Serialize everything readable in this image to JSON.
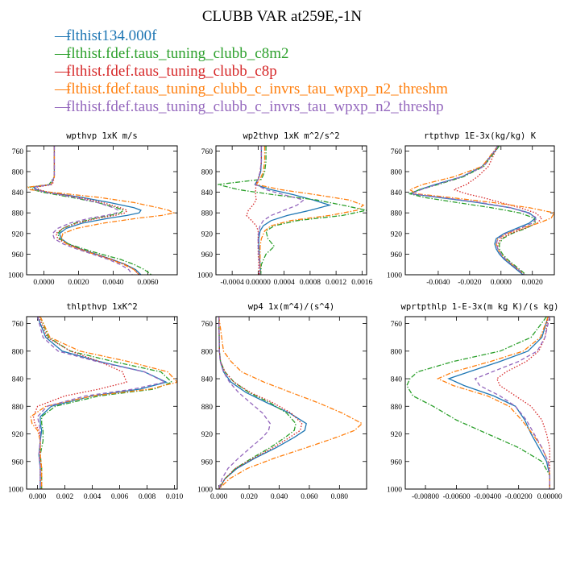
{
  "title": "CLUBB VAR at259E,-1N",
  "legend": [
    {
      "label": "flthist134.000f",
      "color": "#1f77b4",
      "dash": "solid"
    },
    {
      "label": "flthist.fdef.taus_tuning_clubb_c8m2",
      "color": "#2ca02c",
      "dash": "dashdot"
    },
    {
      "label": "flthist.fdef.taus_tuning_clubb_c8p",
      "color": "#d62728",
      "dash": "dotted"
    },
    {
      "label": "flthist.fdef.taus_tuning_clubb_c_invrs_tau_wpxp_n2_threshm",
      "color": "#ff7f0e",
      "dash": "dashdot"
    },
    {
      "label": "flthist.fdef.taus_tuning_clubb_c_invrs_tau_wpxp_n2_threshp",
      "color": "#9467bd",
      "dash": "dashed"
    }
  ],
  "chart_data": [
    {
      "type": "line",
      "title": "wpthvp  1xK m/s",
      "xlim": [
        -0.001,
        0.0077
      ],
      "xticks": [
        0.0,
        0.002,
        0.004,
        0.006
      ],
      "xtick_labels": [
        "0.0000",
        "0.0020",
        "0.0040",
        "0.0060"
      ],
      "ylim": [
        1000,
        750
      ],
      "yticks": [
        760,
        800,
        840,
        880,
        920,
        960,
        1000
      ],
      "y": [
        750,
        780,
        810,
        825,
        830,
        835,
        840,
        850,
        860,
        870,
        875,
        880,
        885,
        890,
        900,
        910,
        920,
        930,
        940,
        950,
        960,
        970,
        980,
        990,
        1000
      ],
      "series": [
        {
          "values": [
            0.0006,
            0.0006,
            0.0006,
            0.0004,
            -0.0006,
            -0.0004,
            0.0002,
            0.0022,
            0.0038,
            0.0052,
            0.0056,
            0.0055,
            0.0048,
            0.0038,
            0.0022,
            0.0013,
            0.0009,
            0.001,
            0.0014,
            0.0021,
            0.003,
            0.0039,
            0.0047,
            0.0053,
            0.0056
          ]
        },
        {
          "values": [
            0.0006,
            0.0006,
            0.0006,
            0.0003,
            -0.0008,
            -0.0006,
            -0.0001,
            0.0016,
            0.0031,
            0.0042,
            0.0046,
            0.0044,
            0.0038,
            0.003,
            0.0018,
            0.0011,
            0.0008,
            0.0009,
            0.0014,
            0.0023,
            0.0033,
            0.0044,
            0.0052,
            0.0058,
            0.0062
          ]
        },
        {
          "values": [
            0.0006,
            0.0006,
            0.0006,
            0.0005,
            -0.0004,
            -0.0003,
            0.0003,
            0.002,
            0.0034,
            0.0044,
            0.0048,
            0.0047,
            0.0041,
            0.0032,
            0.0019,
            0.0011,
            0.0007,
            0.0008,
            0.0013,
            0.0021,
            0.003,
            0.0039,
            0.0047,
            0.0052,
            0.0055
          ]
        },
        {
          "values": [
            0.0006,
            0.0006,
            0.0006,
            0.0004,
            -0.0009,
            -0.0008,
            0.0004,
            0.0032,
            0.0052,
            0.0066,
            0.0072,
            0.0075,
            0.0068,
            0.0055,
            0.0034,
            0.0019,
            0.0011,
            0.001,
            0.0013,
            0.002,
            0.0029,
            0.0038,
            0.0046,
            0.0052,
            0.0055
          ]
        },
        {
          "values": [
            0.0006,
            0.0006,
            0.0006,
            0.0004,
            -0.0006,
            -0.0005,
            0.0001,
            0.0018,
            0.0031,
            0.004,
            0.0043,
            0.0042,
            0.0036,
            0.0027,
            0.0015,
            0.0008,
            0.0005,
            0.0006,
            0.0011,
            0.0019,
            0.0028,
            0.0037,
            0.0044,
            0.0049,
            0.0051
          ]
        }
      ]
    },
    {
      "type": "line",
      "title": "wp2thvp  1xK m^2/s^2",
      "xlim": [
        -0.00065,
        0.00167
      ],
      "xticks": [
        -0.0004,
        0.0,
        0.0004,
        0.0008,
        0.0012,
        0.0016
      ],
      "xtick_labels": [
        "-0.0004",
        "0.00000",
        "0.0004",
        "0.0008",
        "0.0012",
        "0.0016"
      ],
      "ylim": [
        1000,
        750
      ],
      "yticks": [
        760,
        800,
        840,
        880,
        920,
        960,
        1000
      ],
      "y": [
        750,
        780,
        800,
        815,
        825,
        835,
        845,
        855,
        865,
        875,
        885,
        895,
        905,
        915,
        930,
        945,
        960,
        980,
        1000
      ],
      "series": [
        {
          "values": [
            5e-05,
            5e-05,
            4e-05,
            0.0,
            -5e-05,
            0.0002,
            0.00055,
            0.00085,
            0.0011,
            0.0008,
            0.00045,
            0.0002,
            8e-05,
            3e-05,
            1e-05,
            1e-05,
            2e-05,
            3e-05,
            4e-05
          ]
        },
        {
          "values": [
            0.00012,
            0.00012,
            0.0001,
            5e-05,
            -0.00062,
            -0.0003,
            0.00025,
            0.0009,
            0.0013,
            0.00167,
            0.0013,
            0.0006,
            0.00025,
            0.00012,
            0.00015,
            0.00025,
            0.00012,
            5e-05,
            4e-05
          ]
        },
        {
          "values": [
            5e-05,
            5e-05,
            3e-05,
            0.0,
            -3e-05,
            -4e-05,
            -4e-05,
            -3e-05,
            -8e-05,
            -0.00015,
            -0.00018,
            -0.0001,
            -3e-05,
            0.0,
            0.0,
            0.0,
            0.0,
            1e-05,
            1e-05
          ]
        },
        {
          "values": [
            0.0001,
            0.0001,
            8e-05,
            3e-05,
            -3e-05,
            0.00035,
            0.0009,
            0.0014,
            0.00162,
            0.00152,
            0.0011,
            0.0005,
            0.0002,
            0.0001,
            5e-05,
            3e-05,
            3e-05,
            3e-05,
            3e-05
          ]
        },
        {
          "values": [
            5e-05,
            5e-05,
            3e-05,
            0.0,
            -4e-05,
            0.00012,
            0.0004,
            0.0007,
            0.0006,
            0.0004,
            0.0002,
            8e-05,
            3e-05,
            1e-05,
            0.0,
            0.0,
            1e-05,
            2e-05,
            3e-05
          ]
        }
      ]
    },
    {
      "type": "line",
      "title": "rtpthvp  1E-3x(kg/kg) K",
      "xlim": [
        -0.0061,
        0.0034
      ],
      "xticks": [
        -0.004,
        -0.002,
        0.0,
        0.002
      ],
      "xtick_labels": [
        "-0.0040",
        "-0.0020",
        "0.0000",
        "0.0020"
      ],
      "ylim": [
        1000,
        750
      ],
      "yticks": [
        760,
        800,
        840,
        880,
        920,
        960,
        1000
      ],
      "y": [
        750,
        790,
        810,
        825,
        835,
        843,
        850,
        860,
        870,
        880,
        890,
        900,
        910,
        920,
        930,
        940,
        950,
        960,
        970,
        980,
        990,
        1000
      ],
      "series": [
        {
          "values": [
            -0.0001,
            -0.0012,
            -0.0025,
            -0.0042,
            -0.0052,
            -0.0058,
            -0.004,
            -0.0015,
            0.0006,
            0.0018,
            0.0022,
            0.0018,
            0.001,
            0.0002,
            -0.0003,
            -0.0004,
            -0.0003,
            -0.0001,
            0.0002,
            0.0006,
            0.001,
            0.0014
          ]
        },
        {
          "values": [
            -0.0001,
            -0.0011,
            -0.0024,
            -0.004,
            -0.0052,
            -0.0058,
            -0.0049,
            -0.0028,
            -0.0006,
            0.0012,
            0.0021,
            0.0022,
            0.0016,
            0.0007,
            0.0001,
            -0.0001,
            -0.0001,
            0.0001,
            0.0004,
            0.0008,
            0.0012,
            0.0016
          ]
        },
        {
          "values": [
            -0.0002,
            -0.0008,
            -0.0015,
            -0.0022,
            -0.003,
            -0.0022,
            -0.0012,
            0.0,
            0.0012,
            0.0022,
            0.0026,
            0.0023,
            0.0015,
            0.0006,
            0.0,
            -0.0002,
            -0.0002,
            0.0,
            0.0003,
            0.0007,
            0.0011,
            0.0015
          ]
        },
        {
          "values": [
            -0.0002,
            -0.0012,
            -0.003,
            -0.005,
            -0.0058,
            -0.0054,
            -0.0033,
            -0.0005,
            0.0018,
            0.0034,
            0.0032,
            0.0024,
            0.0013,
            0.0004,
            -0.0002,
            -0.0003,
            -0.0002,
            0.0,
            0.0003,
            0.0007,
            0.0011,
            0.0015
          ]
        },
        {
          "values": [
            -0.0002,
            -0.0011,
            -0.0025,
            -0.0041,
            -0.0051,
            -0.0057,
            -0.0038,
            -0.0013,
            0.0006,
            0.0017,
            0.0023,
            0.002,
            0.0012,
            0.0003,
            -0.0002,
            -0.0003,
            -0.0002,
            0.0,
            0.0003,
            0.0007,
            0.0011,
            0.0015
          ]
        }
      ]
    },
    {
      "type": "line",
      "title": "thlpthvp  1xK^2",
      "xlim": [
        -0.0008,
        0.0102
      ],
      "xticks": [
        0.0,
        0.002,
        0.004,
        0.006,
        0.008,
        0.01
      ],
      "xtick_labels": [
        "0.000",
        "0.002",
        "0.004",
        "0.006",
        "0.008",
        "0.010"
      ],
      "ylim": [
        1000,
        750
      ],
      "yticks": [
        760,
        800,
        840,
        880,
        920,
        960,
        1000
      ],
      "y": [
        750,
        780,
        800,
        815,
        830,
        845,
        855,
        865,
        880,
        895,
        905,
        915,
        930,
        950,
        970,
        990,
        1000
      ],
      "series": [
        {
          "values": [
            0.0,
            0.0006,
            0.0018,
            0.0045,
            0.0078,
            0.0094,
            0.0075,
            0.004,
            0.001,
            0.0002,
            0.0002,
            0.0003,
            0.0002,
            0.0001,
            0.0002,
            0.0002,
            0.0002
          ]
        },
        {
          "values": [
            0.0002,
            0.0008,
            0.0024,
            0.0055,
            0.009,
            0.0098,
            0.0085,
            0.0045,
            0.0013,
            0.0003,
            0.0003,
            0.0004,
            0.0004,
            0.0002,
            0.0003,
            0.0003,
            0.0003
          ]
        },
        {
          "values": [
            0.0001,
            0.0007,
            0.0024,
            0.0045,
            0.0062,
            0.0065,
            0.0045,
            0.002,
            0.0,
            -0.0003,
            -0.0002,
            0.0001,
            0.0002,
            0.0002,
            0.0002,
            0.0002,
            0.0002
          ]
        },
        {
          "values": [
            0.0002,
            0.0009,
            0.0031,
            0.0066,
            0.0095,
            0.0102,
            0.0082,
            0.004,
            0.0006,
            -0.0005,
            -0.0004,
            0.0,
            0.0002,
            0.0002,
            0.0003,
            0.0003,
            0.0003
          ]
        },
        {
          "values": [
            0.0,
            0.0004,
            0.0015,
            0.0043,
            0.0078,
            0.0093,
            0.007,
            0.0035,
            0.0007,
            0.0,
            0.0001,
            0.0002,
            0.0002,
            0.0001,
            0.0002,
            0.0002,
            0.0002
          ]
        }
      ]
    },
    {
      "type": "line",
      "title": "wp4  1x(m^4)/(s^4)",
      "xlim": [
        -0.002,
        0.098
      ],
      "xticks": [
        0.0,
        0.02,
        0.04,
        0.06,
        0.08
      ],
      "xtick_labels": [
        "0.000",
        "0.020",
        "0.040",
        "0.060",
        "0.080"
      ],
      "ylim": [
        1000,
        750
      ],
      "yticks": [
        760,
        800,
        840,
        880,
        920,
        960,
        1000
      ],
      "y": [
        750,
        800,
        815,
        830,
        845,
        860,
        875,
        890,
        905,
        915,
        925,
        940,
        955,
        970,
        985,
        1000
      ],
      "series": [
        {
          "values": [
            0.0,
            0.0003,
            0.001,
            0.003,
            0.008,
            0.018,
            0.032,
            0.047,
            0.058,
            0.057,
            0.05,
            0.038,
            0.024,
            0.012,
            0.004,
            0.0
          ]
        },
        {
          "values": [
            0.0,
            0.0003,
            0.001,
            0.004,
            0.01,
            0.02,
            0.034,
            0.045,
            0.051,
            0.05,
            0.044,
            0.034,
            0.022,
            0.011,
            0.004,
            0.0
          ]
        },
        {
          "values": [
            0.0,
            0.0003,
            0.001,
            0.004,
            0.01,
            0.021,
            0.036,
            0.048,
            0.055,
            0.054,
            0.047,
            0.036,
            0.023,
            0.011,
            0.004,
            0.0
          ]
        },
        {
          "values": [
            0.0,
            0.003,
            0.008,
            0.015,
            0.03,
            0.048,
            0.066,
            0.082,
            0.095,
            0.09,
            0.078,
            0.058,
            0.037,
            0.019,
            0.007,
            0.0
          ]
        },
        {
          "values": [
            0.0,
            0.0002,
            0.0008,
            0.003,
            0.007,
            0.013,
            0.021,
            0.029,
            0.034,
            0.033,
            0.029,
            0.021,
            0.013,
            0.006,
            0.002,
            0.0
          ]
        }
      ]
    },
    {
      "type": "line",
      "title": "wprtpthlp  1-E-3x(m kg K)/(s kg)",
      "xlim": [
        -0.0093,
        0.0003
      ],
      "xticks": [
        -0.008,
        -0.006,
        -0.004,
        -0.002,
        0.0
      ],
      "xtick_labels": [
        "-0.00800",
        "-0.00600",
        "-0.00400",
        "-0.00200",
        "0.00000"
      ],
      "ylim": [
        1000,
        750
      ],
      "yticks": [
        760,
        800,
        840,
        880,
        920,
        960,
        1000
      ],
      "y": [
        750,
        780,
        800,
        815,
        830,
        840,
        850,
        865,
        880,
        900,
        920,
        940,
        960,
        980,
        1000
      ],
      "series": [
        {
          "values": [
            -0.0001,
            -0.0005,
            -0.0014,
            -0.0032,
            -0.0052,
            -0.0065,
            -0.0055,
            -0.0036,
            -0.0022,
            -0.0016,
            -0.0012,
            -0.0007,
            -0.0002,
            0.0,
            0.0
          ]
        },
        {
          "values": [
            -0.0002,
            -0.0012,
            -0.0032,
            -0.0062,
            -0.0085,
            -0.009,
            -0.0092,
            -0.0088,
            -0.0075,
            -0.006,
            -0.004,
            -0.002,
            -0.0005,
            0.0,
            0.0
          ]
        },
        {
          "values": [
            -0.0001,
            -0.0003,
            -0.0007,
            -0.0015,
            -0.0028,
            -0.0034,
            -0.0032,
            -0.0022,
            -0.0012,
            -0.0005,
            -0.0002,
            0.0,
            0.0,
            0.0,
            0.0
          ]
        },
        {
          "values": [
            -0.0001,
            -0.0006,
            -0.0017,
            -0.0038,
            -0.0062,
            -0.0072,
            -0.0062,
            -0.004,
            -0.0026,
            -0.0018,
            -0.0011,
            -0.0005,
            -0.0001,
            0.0,
            0.0
          ]
        },
        {
          "values": [
            0.0,
            -0.0003,
            -0.0008,
            -0.002,
            -0.0037,
            -0.0048,
            -0.0045,
            -0.0032,
            -0.0022,
            -0.0015,
            -0.001,
            -0.0005,
            -0.0001,
            0.0,
            0.0
          ]
        }
      ]
    }
  ]
}
